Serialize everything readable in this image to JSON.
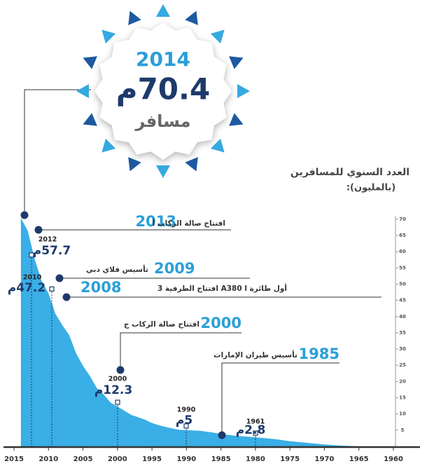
{
  "chart_data": {
    "type": "area",
    "badge": {
      "year": "2014",
      "value": 70.4,
      "value_label": "70.4م",
      "unit": "مسافر"
    },
    "y_axis_title": "العدد السنوي للمسافرين",
    "y_axis_unit": "(بالمليون):",
    "x": [
      2014,
      2013,
      2012,
      2011,
      2010,
      2009,
      2008,
      2007,
      2006,
      2005,
      2004,
      2003,
      2002,
      2001,
      2000,
      1999,
      1998,
      1997,
      1996,
      1995,
      1994,
      1993,
      1992,
      1991,
      1990,
      1988,
      1986,
      1985,
      1983,
      1980,
      1977,
      1975,
      1972,
      1970,
      1968,
      1966,
      1965
    ],
    "values": [
      70.4,
      66.4,
      57.7,
      51,
      47.2,
      40.9,
      37.4,
      34.3,
      28.7,
      24.8,
      21.7,
      18,
      16,
      13.5,
      12.3,
      11,
      9.7,
      9,
      8.2,
      7.2,
      6.5,
      6,
      5.5,
      5.1,
      5,
      4.8,
      4.2,
      3.8,
      3.3,
      2.8,
      2.2,
      1.6,
      1,
      0.6,
      0.3,
      0.1,
      0
    ],
    "color": "#3aaee6",
    "xlim": [
      2015,
      1960
    ],
    "xticks": [
      2015,
      2010,
      2005,
      2000,
      1995,
      1990,
      1985,
      1980,
      1975,
      1970,
      1965,
      1960
    ],
    "ylim": [
      0,
      72
    ],
    "yticks": [
      5,
      10,
      15,
      20,
      25,
      30,
      35,
      40,
      45,
      50,
      55,
      60,
      65,
      70
    ],
    "events": [
      {
        "year": "2013",
        "text": "افتتاح صالة الركاب أ"
      },
      {
        "year": "2009",
        "text": "تأسيس فلاي دبي"
      },
      {
        "year": "2008",
        "text": "أول طائرة A380 l افتتاح الطرفية 3"
      },
      {
        "year": "2000",
        "text": "افتتاح صالة الركاب ج"
      },
      {
        "year": "1985",
        "text": "تأسيس طيران الإمارات"
      }
    ],
    "callouts": [
      {
        "year": "2012",
        "value": 57.7,
        "value_label": "57.7م"
      },
      {
        "year": "2010",
        "value": 47.2,
        "value_label": "47.2م"
      },
      {
        "year": "2000",
        "value": 12.3,
        "value_label": "12.3م"
      },
      {
        "year": "1990",
        "value": 5,
        "value_label": "5م"
      },
      {
        "year": "1961",
        "value": 2.8,
        "value_label": "2.8م"
      }
    ]
  }
}
